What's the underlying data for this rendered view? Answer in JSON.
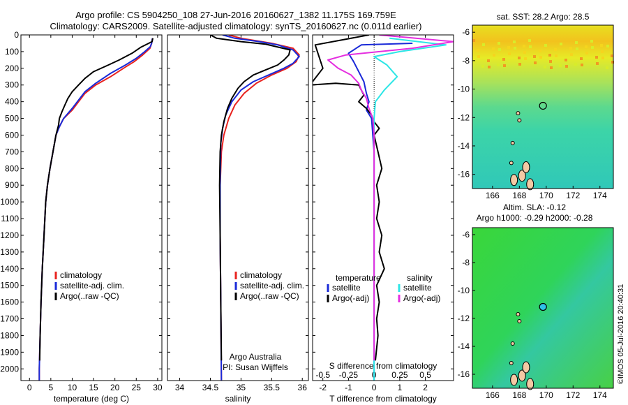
{
  "header": {
    "title_line1": "Argo profile: CS 5904250_108 27-Jun-2016 20160627_1382 11.175S 169.759E",
    "title_line2": "Climatology: CARS2009. Satellite-adjusted climatology: synTS_20160627.nc (0.011d earlier)"
  },
  "footer_text": {
    "center": "Argo Australia",
    "pi": "PI: Susan Wijffels",
    "credit": "©IMOS 05-Jul-2016 20:40:31"
  },
  "colors": {
    "climatology": "#e8231f",
    "satellite": "#1a2ad8",
    "argo": "#000000",
    "salinity_satellite": "#2de6e6",
    "salinity_argo": "#e52ee0"
  },
  "chart_data": [
    {
      "type": "line",
      "xlabel": "temperature (deg C)",
      "ylabel": "",
      "xlim": [
        -2,
        31
      ],
      "ylim": [
        2070,
        0
      ],
      "xticks": [
        0,
        5,
        10,
        15,
        20,
        25,
        30
      ],
      "yticks": [
        0,
        100,
        200,
        300,
        400,
        500,
        600,
        700,
        800,
        900,
        1000,
        1100,
        1200,
        1300,
        1400,
        1500,
        1600,
        1700,
        1800,
        1900,
        2000
      ],
      "legend": [
        "climatology",
        "satellite-adj. clim.",
        "Argo(..raw -QC)"
      ],
      "series": [
        {
          "name": "climatology",
          "color": "#e8231f",
          "points": [
            [
              28.8,
              20
            ],
            [
              28.6,
              50
            ],
            [
              28.2,
              80
            ],
            [
              26.5,
              120
            ],
            [
              24.5,
              160
            ],
            [
              22,
              200
            ],
            [
              19,
              250
            ],
            [
              15.5,
              300
            ],
            [
              13,
              350
            ],
            [
              11.5,
              400
            ],
            [
              10,
              450
            ],
            [
              8,
              500
            ],
            [
              7,
              550
            ],
            [
              6.2,
              600
            ],
            [
              5.5,
              700
            ],
            [
              4.8,
              800
            ],
            [
              4.2,
              900
            ],
            [
              3.8,
              1000
            ],
            [
              3.4,
              1200
            ],
            [
              3,
              1400
            ],
            [
              2.7,
              1600
            ],
            [
              2.5,
              1800
            ],
            [
              2.3,
              2000
            ],
            [
              2.3,
              2070
            ]
          ]
        },
        {
          "name": "satellite-adj. clim.",
          "color": "#1a2ad8",
          "points": [
            [
              28.8,
              20
            ],
            [
              28.6,
              50
            ],
            [
              28.3,
              70
            ],
            [
              27,
              100
            ],
            [
              25,
              140
            ],
            [
              22.5,
              180
            ],
            [
              19,
              230
            ],
            [
              15.5,
              290
            ],
            [
              13,
              340
            ],
            [
              11.5,
              390
            ],
            [
              10,
              440
            ],
            [
              8,
              500
            ],
            [
              7,
              550
            ],
            [
              6.2,
              600
            ],
            [
              5.5,
              700
            ],
            [
              4.8,
              800
            ],
            [
              4.2,
              900
            ],
            [
              3.8,
              1000
            ],
            [
              3.4,
              1200
            ],
            [
              3,
              1400
            ],
            [
              2.7,
              1600
            ],
            [
              2.5,
              1800
            ],
            [
              2.3,
              2000
            ],
            [
              2.3,
              2070
            ]
          ]
        },
        {
          "name": "Argo(..raw -QC)",
          "color": "#000000",
          "points": [
            [
              28.9,
              20
            ],
            [
              28.7,
              40
            ],
            [
              26,
              75
            ],
            [
              24,
              110
            ],
            [
              21,
              150
            ],
            [
              18.5,
              180
            ],
            [
              15,
              220
            ],
            [
              13,
              260
            ],
            [
              11.5,
              300
            ],
            [
              10,
              340
            ],
            [
              9,
              380
            ],
            [
              8.3,
              420
            ],
            [
              7.6,
              460
            ],
            [
              7,
              500
            ],
            [
              6.8,
              540
            ],
            [
              6.2,
              600
            ],
            [
              5.5,
              700
            ],
            [
              4.8,
              800
            ],
            [
              4.2,
              900
            ],
            [
              3.8,
              1000
            ],
            [
              3.4,
              1200
            ],
            [
              3,
              1400
            ],
            [
              2.7,
              1600
            ],
            [
              2.5,
              1800
            ],
            [
              2.4,
              1950
            ]
          ]
        }
      ]
    },
    {
      "type": "line",
      "xlabel": "salinity",
      "ylabel": "",
      "xlim": [
        33.8,
        36.1
      ],
      "ylim": [
        2070,
        0
      ],
      "xticks": [
        34,
        34.5,
        35,
        35.5,
        36
      ],
      "legend": [
        "climatology",
        "satellite-adj. clim.",
        "Argo(..raw -QC)"
      ],
      "series": [
        {
          "name": "climatology",
          "color": "#e8231f",
          "points": [
            [
              34.8,
              0
            ],
            [
              35,
              20
            ],
            [
              35.5,
              50
            ],
            [
              35.85,
              80
            ],
            [
              35.95,
              120
            ],
            [
              35.9,
              160
            ],
            [
              35.75,
              200
            ],
            [
              35.5,
              240
            ],
            [
              35.25,
              290
            ],
            [
              35.05,
              350
            ],
            [
              34.9,
              420
            ],
            [
              34.8,
              500
            ],
            [
              34.72,
              600
            ],
            [
              34.68,
              700
            ],
            [
              34.66,
              900
            ],
            [
              34.66,
              1200
            ],
            [
              34.67,
              1600
            ],
            [
              34.68,
              2070
            ]
          ]
        },
        {
          "name": "satellite-adj. clim.",
          "color": "#1a2ad8",
          "points": [
            [
              34.7,
              0
            ],
            [
              34.9,
              20
            ],
            [
              35.3,
              40
            ],
            [
              35.6,
              60
            ],
            [
              35.85,
              90
            ],
            [
              35.95,
              130
            ],
            [
              35.85,
              170
            ],
            [
              35.7,
              200
            ],
            [
              35.45,
              240
            ],
            [
              35.2,
              280
            ],
            [
              35,
              330
            ],
            [
              34.85,
              400
            ],
            [
              34.75,
              480
            ],
            [
              34.7,
              560
            ],
            [
              34.67,
              650
            ],
            [
              34.66,
              900
            ],
            [
              34.66,
              1200
            ],
            [
              34.67,
              1600
            ],
            [
              34.68,
              2070
            ]
          ]
        },
        {
          "name": "Argo(..raw -QC)",
          "color": "#000000",
          "points": [
            [
              34.5,
              0
            ],
            [
              34.6,
              20
            ],
            [
              35,
              40
            ],
            [
              35.4,
              55
            ],
            [
              35.8,
              90
            ],
            [
              35.78,
              120
            ],
            [
              35.7,
              150
            ],
            [
              35.6,
              180
            ],
            [
              35.4,
              210
            ],
            [
              35.2,
              240
            ],
            [
              35.05,
              280
            ],
            [
              34.95,
              320
            ],
            [
              34.85,
              380
            ],
            [
              34.78,
              440
            ],
            [
              34.72,
              520
            ],
            [
              34.68,
              600
            ],
            [
              34.66,
              700
            ],
            [
              34.65,
              900
            ],
            [
              34.66,
              1200
            ],
            [
              34.67,
              1600
            ],
            [
              34.68,
              1950
            ]
          ]
        }
      ]
    },
    {
      "type": "line",
      "xlabel": "T difference from climatology",
      "xlabel_top": "S difference from climatology",
      "ylabel": "",
      "xlim": [
        -2.4,
        3.1
      ],
      "ylim": [
        2070,
        0
      ],
      "xticks": [
        -2,
        -1,
        0,
        1,
        2
      ],
      "xticks_top_labels": [
        "-0.5",
        "-0.25",
        "0",
        "0.25",
        "0.5"
      ],
      "legend_headers": [
        "temperature",
        "salinity"
      ],
      "legend": [
        "satellite",
        "Argo(-adj)",
        "satellite",
        "Argo(-adj)"
      ],
      "series": [
        {
          "name": "satellite",
          "group": "temperature",
          "color": "#1a2ad8",
          "points": [
            [
              1.5,
              50
            ],
            [
              -0.5,
              60
            ],
            [
              -1,
              110
            ],
            [
              -0.8,
              160
            ],
            [
              -0.6,
              220
            ],
            [
              -0.4,
              280
            ],
            [
              -0.3,
              350
            ],
            [
              -0.2,
              400
            ],
            [
              -0.3,
              450
            ],
            [
              -0.1,
              500
            ],
            [
              -0.05,
              600
            ],
            [
              0,
              700
            ],
            [
              0,
              1000
            ],
            [
              0,
              1500
            ],
            [
              0,
              2070
            ]
          ]
        },
        {
          "name": "Argo(-adj)",
          "group": "temperature",
          "color": "#000000",
          "points": [
            [
              -0.2,
              0
            ],
            [
              -2.3,
              60
            ],
            [
              -2,
              200
            ],
            [
              -2.5,
              300
            ],
            [
              -1.5,
              290
            ],
            [
              -0.6,
              300
            ],
            [
              -0.4,
              360
            ],
            [
              -0.6,
              400
            ],
            [
              -0.3,
              440
            ],
            [
              -0.1,
              480
            ],
            [
              0,
              520
            ],
            [
              0.2,
              560
            ],
            [
              0,
              600
            ],
            [
              0.15,
              700
            ],
            [
              0.3,
              800
            ],
            [
              0.1,
              900
            ],
            [
              0.2,
              1000
            ],
            [
              0.1,
              1100
            ],
            [
              0.3,
              1200
            ],
            [
              0.2,
              1300
            ],
            [
              0.4,
              1400
            ],
            [
              0.1,
              1500
            ],
            [
              0.2,
              1600
            ],
            [
              0.1,
              1700
            ],
            [
              0.15,
              1800
            ],
            [
              0.05,
              1950
            ]
          ]
        },
        {
          "name": "satellite",
          "group": "salinity",
          "color": "#2de6e6",
          "points": [
            [
              0.6,
              20
            ],
            [
              2.8,
              60
            ],
            [
              1,
              100
            ],
            [
              0,
              130
            ],
            [
              0.5,
              180
            ],
            [
              0.9,
              250
            ],
            [
              0.4,
              330
            ],
            [
              0.05,
              400
            ],
            [
              0,
              500
            ],
            [
              0,
              700
            ],
            [
              0,
              1000
            ],
            [
              0,
              1500
            ],
            [
              0,
              2070
            ]
          ]
        },
        {
          "name": "Argo(-adj)",
          "group": "salinity",
          "color": "#e52ee0",
          "points": [
            [
              0.2,
              0
            ],
            [
              3.1,
              40
            ],
            [
              1.5,
              80
            ],
            [
              -1.1,
              120
            ],
            [
              -1.8,
              150
            ],
            [
              -1.4,
              200
            ],
            [
              -0.9,
              240
            ],
            [
              -0.6,
              290
            ],
            [
              -0.5,
              330
            ],
            [
              -0.3,
              380
            ],
            [
              -0.2,
              440
            ],
            [
              -0.05,
              500
            ],
            [
              0,
              600
            ],
            [
              0,
              1000
            ],
            [
              0,
              1500
            ],
            [
              0,
              1950
            ]
          ]
        }
      ]
    },
    {
      "type": "heatmap",
      "title": "sat. SST: 28.2  Argo: 28.5",
      "xlim": [
        164.5,
        175
      ],
      "ylim": [
        -17,
        -5.5
      ],
      "xticks": [
        166,
        168,
        170,
        172,
        174
      ],
      "yticks": [
        -6,
        -8,
        -10,
        -12,
        -14,
        -16
      ],
      "marker": [
        169.759,
        -11.175
      ]
    },
    {
      "type": "heatmap",
      "title_line1": "Altim. SLA: -0.12",
      "title_line2": "Argo h1000: -0.29  h2000: -0.28",
      "xlim": [
        164.5,
        175
      ],
      "ylim": [
        -17,
        -5.5
      ],
      "xticks": [
        166,
        168,
        170,
        172,
        174
      ],
      "yticks": [
        -6,
        -8,
        -10,
        -12,
        -14,
        -16
      ],
      "marker": [
        169.759,
        -11.175
      ]
    }
  ]
}
